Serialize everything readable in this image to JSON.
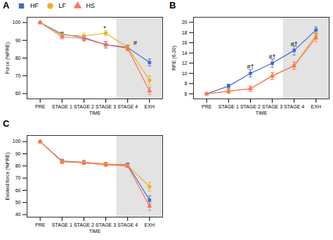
{
  "chart_data": [
    {
      "type": "line",
      "title": "A",
      "xlabel": "TIME",
      "ylabel": "Force (%PRE)",
      "categories": [
        "PRE",
        "STAGE 1",
        "STAGE 2",
        "STAGE 3",
        "STAGE 4",
        "EXH"
      ],
      "ylim": [
        57,
        103
      ],
      "yticks": [
        60,
        70,
        80,
        90,
        100
      ],
      "legend": "upper center",
      "series": [
        {
          "name": "HF",
          "marker": "square",
          "values": [
            100,
            93.5,
            91.5,
            87.5,
            86.0,
            77.5
          ],
          "errors": [
            0,
            1.2,
            1.5,
            1.8,
            1.5,
            2.0
          ]
        },
        {
          "name": "LF",
          "marker": "circle",
          "values": [
            100,
            93.0,
            92.5,
            94.0,
            86.0,
            67.5
          ],
          "errors": [
            0,
            1.2,
            1.5,
            1.5,
            1.5,
            2.5
          ]
        },
        {
          "name": "HS",
          "marker": "triangle",
          "values": [
            100,
            92.0,
            91.0,
            87.5,
            85.5,
            61.5
          ],
          "errors": [
            0,
            1.2,
            1.5,
            1.8,
            1.5,
            2.0
          ]
        }
      ],
      "shaded_region": {
        "from": "STAGE 4",
        "color": "#cccccc"
      },
      "annotations": [
        {
          "x": 2.95,
          "y": 95.5,
          "text": "*"
        },
        {
          "x": 4.35,
          "y": 87.5,
          "text": "#"
        }
      ]
    },
    {
      "type": "line",
      "title": "B",
      "xlabel": "TIME",
      "ylabel": "RPE (6-20)",
      "categories": [
        "PRE",
        "STAGE 1",
        "STAGE 2",
        "STAGE 3",
        "STAGE 4",
        "EXH"
      ],
      "ylim": [
        5,
        21
      ],
      "yticks": [
        6,
        8,
        10,
        12,
        14,
        16,
        18,
        20
      ],
      "series": [
        {
          "name": "HF",
          "marker": "square",
          "values": [
            6,
            7.5,
            10.0,
            12.0,
            14.5,
            18.5
          ],
          "errors": [
            0,
            0.4,
            0.7,
            0.8,
            0.9,
            0.6
          ]
        },
        {
          "name": "LF",
          "marker": "circle",
          "values": [
            6,
            6.5,
            7.0,
            9.5,
            11.5,
            17.5
          ],
          "errors": [
            0,
            0.4,
            0.5,
            0.7,
            0.7,
            0.8
          ]
        },
        {
          "name": "HS",
          "marker": "triangle",
          "values": [
            6,
            6.5,
            7.0,
            9.5,
            11.5,
            17.0
          ],
          "errors": [
            0,
            0.4,
            0.5,
            0.7,
            0.7,
            0.8
          ]
        }
      ],
      "shaded_region": {
        "from": "STAGE 4",
        "color": "#cccccc"
      },
      "annotations": [
        {
          "x": 2.0,
          "y": 10.8,
          "text": "#†"
        },
        {
          "x": 3.0,
          "y": 12.8,
          "text": "#†"
        },
        {
          "x": 4.0,
          "y": 15.3,
          "text": "#†"
        }
      ]
    },
    {
      "type": "line",
      "title": "C",
      "xlabel": "TIME",
      "ylabel": "Evoked force (%PRE)",
      "categories": [
        "PRE",
        "STAGE 1",
        "STAGE 2",
        "STAGE 3",
        "STAGE 4",
        "EXH"
      ],
      "ylim": [
        38,
        105
      ],
      "yticks": [
        40,
        50,
        60,
        70,
        80,
        90,
        100
      ],
      "series": [
        {
          "name": "HF",
          "marker": "square",
          "values": [
            100,
            84.0,
            83.0,
            81.5,
            81.0,
            52.0
          ],
          "errors": [
            0,
            1.5,
            1.5,
            1.5,
            1.5,
            3.5
          ]
        },
        {
          "name": "LF",
          "marker": "circle",
          "values": [
            100,
            83.5,
            83.0,
            81.5,
            80.5,
            63.0
          ],
          "errors": [
            0,
            1.5,
            1.5,
            1.5,
            1.5,
            3.5
          ]
        },
        {
          "name": "HS",
          "marker": "triangle",
          "values": [
            100,
            83.5,
            82.5,
            81.0,
            80.0,
            47.0
          ],
          "errors": [
            0,
            1.5,
            1.5,
            1.5,
            1.5,
            3.5
          ]
        }
      ],
      "shaded_region": {
        "from": "STAGE 4",
        "color": "#cccccc"
      }
    }
  ]
}
